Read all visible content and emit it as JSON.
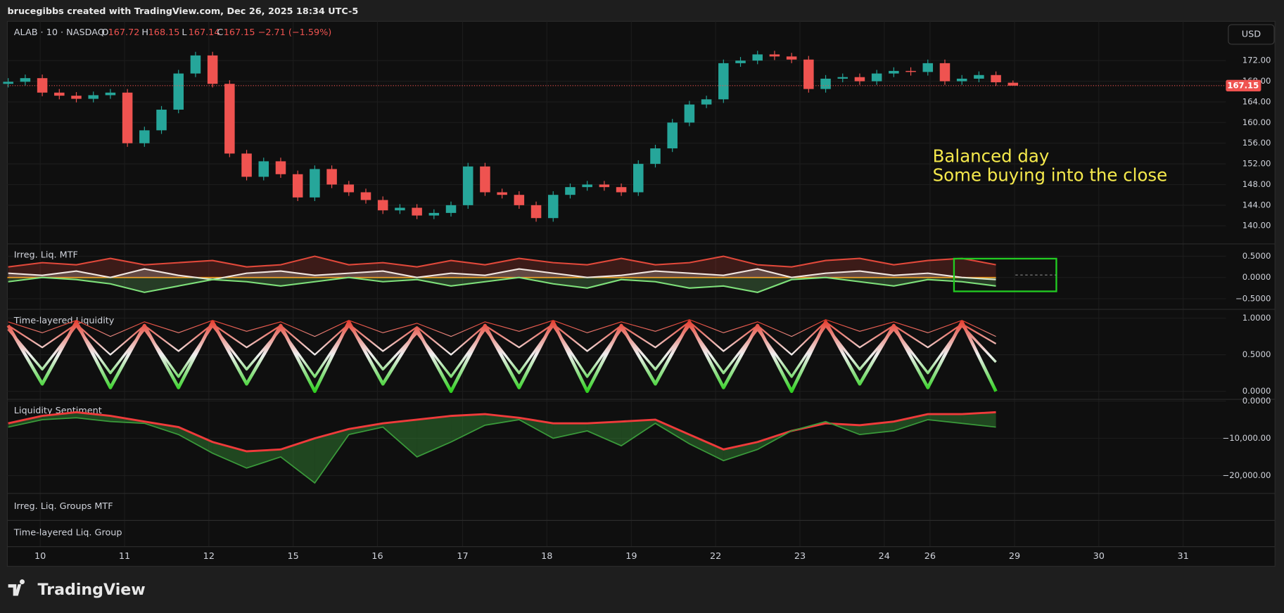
{
  "header": "brucegibbs created with TradingView.com, Dec 26, 2025 18:34 UTC-5",
  "currency": "USD",
  "logo": "TradingView",
  "empty_panes": [
    "Irreg. Liq. Groups MTF",
    "Time-layered Liq. Group"
  ],
  "chart_data": [
    {
      "type": "candlestick",
      "title": "ALAB · 10 · NASDAQ",
      "ohlc_labels": [
        "O",
        "H",
        "L",
        "C"
      ],
      "change": "−2.71 (−1.59%)",
      "annotation": [
        "Balanced day",
        "Some buying into the close"
      ],
      "annotation_color": "#f5e94c",
      "up_color": "#26a69a",
      "down_color": "#ef5350",
      "x": [
        0,
        1,
        2,
        3,
        4,
        5,
        6,
        7,
        8,
        9,
        10,
        11,
        12,
        13,
        14,
        15,
        16,
        17,
        18,
        19,
        20,
        21,
        22,
        23,
        24,
        25,
        26,
        27,
        28,
        29,
        30,
        31,
        32,
        33,
        34,
        35,
        36,
        37,
        38,
        39,
        40,
        41,
        42,
        43,
        44,
        45,
        46,
        47,
        48,
        49,
        50,
        51,
        52,
        53,
        54,
        55,
        56,
        57,
        58,
        59
      ],
      "open": [
        167.5,
        167.9,
        168.6,
        165.8,
        165.2,
        164.6,
        165.3,
        165.8,
        156.0,
        158.5,
        162.5,
        169.5,
        173.0,
        167.5,
        154.0,
        149.5,
        152.5,
        150.0,
        145.5,
        151.0,
        148.0,
        146.5,
        145.0,
        143.0,
        143.5,
        142.0,
        142.5,
        144.0,
        151.5,
        146.5,
        146.0,
        144.0,
        141.5,
        146.0,
        147.5,
        148.0,
        147.5,
        146.5,
        152.0,
        155.0,
        160.0,
        163.5,
        164.5,
        171.5,
        172.0,
        173.2,
        172.8,
        172.2,
        166.5,
        168.5,
        168.8,
        168.0,
        169.5,
        170.0,
        169.8,
        171.5,
        168.0,
        168.5,
        169.2,
        167.72
      ],
      "high": [
        168.6,
        169.3,
        169.3,
        166.5,
        165.9,
        166.0,
        166.5,
        166.5,
        159.2,
        163.2,
        170.2,
        173.7,
        173.7,
        168.2,
        154.7,
        153.2,
        153.2,
        150.7,
        151.7,
        151.7,
        148.7,
        147.2,
        145.7,
        144.2,
        144.2,
        143.2,
        144.7,
        152.2,
        152.2,
        147.2,
        146.7,
        144.7,
        146.7,
        148.2,
        148.7,
        148.7,
        148.2,
        152.7,
        155.7,
        160.7,
        164.2,
        165.2,
        172.2,
        172.7,
        173.9,
        173.9,
        173.5,
        172.9,
        169.2,
        169.5,
        169.5,
        170.2,
        170.7,
        170.7,
        172.2,
        172.2,
        169.2,
        169.9,
        169.9,
        168.15
      ],
      "low": [
        166.8,
        167.2,
        165.1,
        164.5,
        163.9,
        163.9,
        164.6,
        155.3,
        155.3,
        157.8,
        161.8,
        168.8,
        166.8,
        153.3,
        148.8,
        148.8,
        149.3,
        144.8,
        144.8,
        147.3,
        145.8,
        144.3,
        142.3,
        142.3,
        141.3,
        141.3,
        141.8,
        143.3,
        145.8,
        145.3,
        143.3,
        140.8,
        140.8,
        145.3,
        146.8,
        146.8,
        145.8,
        145.8,
        151.3,
        154.3,
        159.3,
        162.8,
        163.8,
        170.8,
        171.3,
        172.1,
        171.5,
        165.8,
        165.8,
        167.8,
        167.3,
        167.3,
        168.8,
        169.1,
        169.1,
        167.3,
        167.3,
        167.8,
        167.1,
        167.14
      ],
      "close": [
        167.9,
        168.6,
        165.8,
        165.2,
        164.6,
        165.3,
        165.8,
        156.0,
        158.5,
        162.5,
        169.5,
        173.0,
        167.5,
        154.0,
        149.5,
        152.5,
        150.0,
        145.5,
        151.0,
        148.0,
        146.5,
        145.0,
        143.0,
        143.5,
        142.0,
        142.5,
        144.0,
        151.5,
        146.5,
        146.0,
        144.0,
        141.5,
        146.0,
        147.5,
        148.0,
        147.5,
        146.5,
        152.0,
        155.0,
        160.0,
        163.5,
        164.5,
        171.5,
        172.0,
        173.2,
        172.8,
        172.2,
        166.5,
        168.5,
        168.8,
        168.0,
        169.5,
        170.0,
        169.8,
        171.5,
        168.0,
        168.5,
        169.2,
        167.8,
        167.15
      ],
      "xlim": [
        -0.05,
        71.5
      ],
      "ylim": [
        136.5,
        179.6
      ],
      "yticks": [
        {
          "value": 140,
          "label": "140.00"
        },
        {
          "value": 144,
          "label": "144.00"
        },
        {
          "value": 148,
          "label": "148.00"
        },
        {
          "value": 152,
          "label": "152.00"
        },
        {
          "value": 156,
          "label": "156.00"
        },
        {
          "value": 160,
          "label": "160.00"
        },
        {
          "value": 164,
          "label": "164.00"
        },
        {
          "value": 168,
          "label": "168.00"
        },
        {
          "value": 172,
          "label": "172.00"
        }
      ],
      "xticks": [
        {
          "value": 1.88,
          "label": "10"
        },
        {
          "value": 6.83,
          "label": "11"
        },
        {
          "value": 11.78,
          "label": "12"
        },
        {
          "value": 16.73,
          "label": "15"
        },
        {
          "value": 21.68,
          "label": "16"
        },
        {
          "value": 26.68,
          "label": "17"
        },
        {
          "value": 31.63,
          "label": "18"
        },
        {
          "value": 36.59,
          "label": "19"
        },
        {
          "value": 41.54,
          "label": "22"
        },
        {
          "value": 46.49,
          "label": "23"
        },
        {
          "value": 51.44,
          "label": "24"
        },
        {
          "value": 54.13,
          "label": "26"
        },
        {
          "value": 59.09,
          "label": "29"
        },
        {
          "value": 64.04,
          "label": "30"
        },
        {
          "value": 68.99,
          "label": "31"
        }
      ]
    },
    {
      "type": "area",
      "title": "Irreg. Liq. MTF",
      "zero_line_color": "#ff9800",
      "x": [
        0,
        2,
        4,
        6,
        8,
        10,
        12,
        14,
        16,
        18,
        20,
        22,
        24,
        26,
        28,
        30,
        32,
        34,
        36,
        38,
        40,
        42,
        44,
        46,
        48,
        50,
        52,
        54,
        56,
        58
      ],
      "xlim": [
        -0.05,
        71.5
      ],
      "ylim": [
        -0.75,
        0.79
      ],
      "yticks": [
        {
          "value": 0.5,
          "label": "0.5000"
        },
        {
          "value": 0,
          "label": "0.0000"
        },
        {
          "value": -0.5,
          "label": "−0.5000"
        }
      ],
      "series": [
        {
          "color": "#e0483a",
          "values": [
            0.25,
            0.35,
            0.3,
            0.45,
            0.3,
            0.35,
            0.4,
            0.25,
            0.3,
            0.5,
            0.3,
            0.35,
            0.25,
            0.4,
            0.3,
            0.45,
            0.35,
            0.3,
            0.45,
            0.3,
            0.35,
            0.5,
            0.3,
            0.25,
            0.4,
            0.45,
            0.3,
            0.4,
            0.45,
            0.3
          ]
        },
        {
          "color": "#f2e6e0",
          "values": [
            0.1,
            0.05,
            0.15,
            0.0,
            0.2,
            0.05,
            -0.05,
            0.1,
            0.15,
            0.05,
            0.1,
            0.15,
            0.0,
            0.1,
            0.05,
            0.2,
            0.1,
            0.0,
            0.05,
            0.15,
            0.1,
            0.05,
            0.2,
            0.0,
            0.1,
            0.15,
            0.05,
            0.1,
            0.0,
            -0.05
          ]
        },
        {
          "color": "#7ee07a",
          "values": [
            -0.1,
            0.0,
            -0.05,
            -0.15,
            -0.35,
            -0.2,
            -0.05,
            -0.1,
            -0.2,
            -0.1,
            0.0,
            -0.1,
            -0.05,
            -0.2,
            -0.1,
            0.0,
            -0.15,
            -0.25,
            -0.05,
            -0.1,
            -0.25,
            -0.2,
            -0.35,
            -0.05,
            0.0,
            -0.1,
            -0.2,
            -0.05,
            -0.1,
            -0.2
          ]
        }
      ]
    },
    {
      "type": "line",
      "title": "Time-layered Liquidity",
      "colors": [
        "#e53020",
        "#f0f0f0",
        "#30d020"
      ],
      "x": [
        0,
        2,
        4,
        6,
        8,
        10,
        12,
        14,
        16,
        18,
        20,
        22,
        24,
        26,
        28,
        30,
        32,
        34,
        36,
        38,
        40,
        42,
        44,
        46,
        48,
        50,
        52,
        54,
        56,
        58
      ],
      "xlim": [
        -0.05,
        71.5
      ],
      "ylim": [
        -0.11,
        1.12
      ],
      "yticks": [
        {
          "value": 1,
          "label": "1.0000"
        },
        {
          "value": 0.5,
          "label": "0.5000"
        },
        {
          "value": 0,
          "label": "0.0000"
        }
      ],
      "series": [
        {
          "values": [
            0.9,
            0.1,
            0.95,
            0.05,
            0.9,
            0.05,
            0.95,
            0.1,
            0.9,
            0.0,
            0.95,
            0.1,
            0.85,
            0.0,
            0.9,
            0.05,
            0.95,
            0.0,
            0.9,
            0.1,
            0.95,
            0.05,
            0.9,
            0.0,
            0.95,
            0.1,
            0.9,
            0.05,
            0.95,
            0.0
          ]
        },
        {
          "values": [
            0.85,
            0.3,
            0.9,
            0.25,
            0.85,
            0.2,
            0.9,
            0.3,
            0.85,
            0.2,
            0.9,
            0.3,
            0.8,
            0.2,
            0.85,
            0.25,
            0.9,
            0.2,
            0.85,
            0.3,
            0.9,
            0.25,
            0.85,
            0.2,
            0.9,
            0.3,
            0.85,
            0.25,
            0.9,
            0.4
          ]
        },
        {
          "values": [
            0.9,
            0.6,
            0.92,
            0.5,
            0.9,
            0.55,
            0.92,
            0.6,
            0.9,
            0.5,
            0.92,
            0.55,
            0.88,
            0.5,
            0.9,
            0.6,
            0.92,
            0.55,
            0.9,
            0.6,
            0.95,
            0.55,
            0.9,
            0.5,
            0.95,
            0.6,
            0.9,
            0.6,
            0.92,
            0.65
          ]
        },
        {
          "values": [
            0.95,
            0.8,
            0.97,
            0.75,
            0.95,
            0.8,
            0.97,
            0.82,
            0.95,
            0.75,
            0.97,
            0.8,
            0.93,
            0.75,
            0.95,
            0.82,
            0.97,
            0.8,
            0.95,
            0.82,
            0.98,
            0.8,
            0.95,
            0.75,
            0.98,
            0.82,
            0.95,
            0.8,
            0.97,
            0.75
          ]
        }
      ]
    },
    {
      "type": "band",
      "title": "Liquidity Sentiment",
      "x": [
        0,
        2,
        4,
        6,
        8,
        10,
        12,
        14,
        16,
        18,
        20,
        22,
        24,
        26,
        28,
        30,
        32,
        34,
        36,
        38,
        40,
        42,
        44,
        46,
        48,
        50,
        52,
        54,
        56,
        58
      ],
      "xlim": [
        -0.05,
        71.5
      ],
      "ylim": [
        -24800,
        440
      ],
      "yticks": [
        {
          "value": 0,
          "label": "0.0000"
        },
        {
          "value": -10000,
          "label": "−10,000.00"
        },
        {
          "value": -20000,
          "label": "−20,000.00"
        }
      ],
      "series": [
        {
          "color": "#ef3b3b",
          "values": [
            -6000,
            -4000,
            -3000,
            -4000,
            -5500,
            -7000,
            -11000,
            -13500,
            -13000,
            -10000,
            -7500,
            -6000,
            -5000,
            -4000,
            -3500,
            -4500,
            -6000,
            -6000,
            -5500,
            -5000,
            -9000,
            -13000,
            -11000,
            -8000,
            -6000,
            -6500,
            -5500,
            -3500,
            -3500,
            -3000
          ]
        },
        {
          "color": "#3a9a3a",
          "values": [
            -7000,
            -5000,
            -4500,
            -5500,
            -6000,
            -9000,
            -14000,
            -18000,
            -15000,
            -22000,
            -9000,
            -7000,
            -15000,
            -11000,
            -6500,
            -5000,
            -10000,
            -8000,
            -12000,
            -6000,
            -11500,
            -16000,
            -13000,
            -8000,
            -5500,
            -9000,
            -8000,
            -5000,
            -6000,
            -7000
          ]
        }
      ]
    }
  ]
}
